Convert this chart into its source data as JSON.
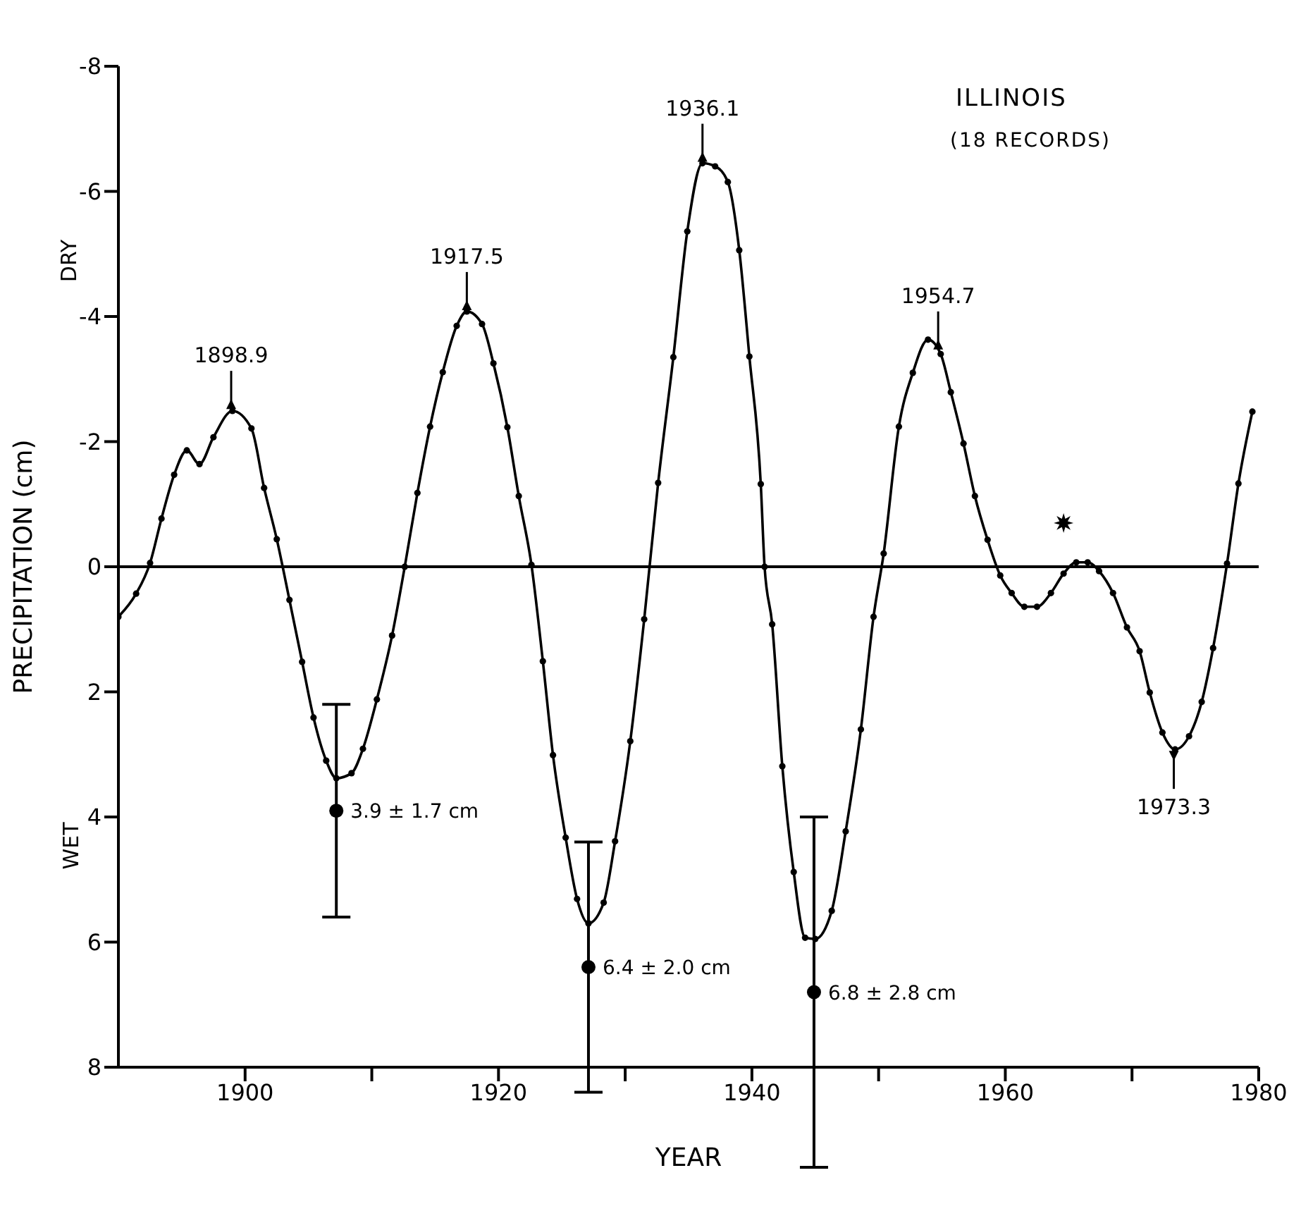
{
  "chart_data": {
    "type": "line",
    "title": "ILLINOIS",
    "subtitle": "(18 RECORDS)",
    "xlabel": "YEAR",
    "ylabel": "PRECIPITATION (cm)",
    "xlim": [
      1890,
      1980
    ],
    "xticks": [
      1900,
      {
        "value": 1910,
        "label": null
      },
      1920,
      {
        "value": 1930,
        "label": null
      },
      1940,
      {
        "value": 1950,
        "label": null
      },
      1960,
      {
        "value": 1970,
        "label": null
      },
      1980
    ],
    "ylim": [
      8,
      -8
    ],
    "yticks": [
      -8,
      -6,
      -4,
      -2,
      0,
      2,
      4,
      6,
      8
    ],
    "grid": false,
    "marker": "circle",
    "line_style": "solid",
    "series": [
      {
        "color": "#000000",
        "x": [
          1890.0,
          1891.4,
          1892.5,
          1893.4,
          1894.4,
          1895.4,
          1896.4,
          1897.5,
          1899.0,
          1900.5,
          1901.5,
          1902.5,
          1903.5,
          1904.5,
          1905.4,
          1906.4,
          1907.2,
          1908.4,
          1909.3,
          1910.4,
          1911.6,
          1912.6,
          1913.6,
          1914.6,
          1915.6,
          1916.7,
          1917.5,
          1918.7,
          1919.6,
          1920.7,
          1921.6,
          1922.6,
          1923.5,
          1924.3,
          1925.3,
          1926.2,
          1927.1,
          1928.3,
          1929.2,
          1930.4,
          1931.5,
          1932.6,
          1933.8,
          1934.9,
          1936.1,
          1937.1,
          1938.1,
          1939.0,
          1939.8,
          1940.7,
          1941.0,
          1941.6,
          1942.4,
          1943.3,
          1944.2,
          1945.0,
          1946.3,
          1947.4,
          1948.6,
          1949.6,
          1950.4,
          1951.6,
          1952.7,
          1953.9,
          1954.9,
          1955.7,
          1956.7,
          1957.6,
          1958.6,
          1959.6,
          1960.5,
          1961.5,
          1962.5,
          1963.6,
          1964.6,
          1965.6,
          1966.5,
          1967.4,
          1968.5,
          1969.6,
          1970.6,
          1971.4,
          1972.4,
          1973.4,
          1974.5,
          1975.5,
          1976.4,
          1977.5,
          1978.4,
          1979.5
        ],
        "values": [
          0.8,
          0.43,
          -0.06,
          -0.77,
          -1.47,
          -1.86,
          -1.64,
          -2.07,
          -2.49,
          -2.21,
          -1.26,
          -0.44,
          0.53,
          1.52,
          2.41,
          3.1,
          3.38,
          3.3,
          2.91,
          2.12,
          1.1,
          0,
          -1.18,
          -2.24,
          -3.11,
          -3.85,
          -4.08,
          -3.88,
          -3.25,
          -2.23,
          -1.13,
          -0.03,
          1.51,
          3.01,
          4.33,
          5.31,
          5.7,
          5.37,
          4.39,
          2.79,
          0.84,
          -1.34,
          -3.35,
          -5.36,
          -6.45,
          -6.4,
          -6.15,
          -5.06,
          -3.36,
          -1.32,
          0,
          0.92,
          3.19,
          4.88,
          5.93,
          5.95,
          5.5,
          4.23,
          2.6,
          0.8,
          -0.21,
          -2.24,
          -3.1,
          -3.63,
          -3.4,
          -2.79,
          -1.97,
          -1.13,
          -0.43,
          0.14,
          0.42,
          0.64,
          0.64,
          0.42,
          0.11,
          -0.07,
          -0.07,
          0.07,
          0.42,
          0.97,
          1.35,
          2.01,
          2.65,
          2.92,
          2.71,
          2.16,
          1.3,
          -0.05,
          -1.33,
          -2.48
        ]
      },
      {
        "type": "scatter",
        "color": "#000000",
        "x": [
          1907.2,
          1927.1,
          1944.9
        ],
        "values": [
          3.9,
          6.4,
          6.8
        ],
        "errors": [
          1.7,
          2.0,
          2.8
        ],
        "value_labels": [
          "3.9 ± 1.7 cm",
          "6.4 ± 2.0 cm",
          "6.8 ± 2.8 cm"
        ]
      },
      {
        "type": "scatter",
        "color": "#000000",
        "marker": "star",
        "x": [
          1964.6
        ],
        "values": [
          -0.7
        ]
      }
    ],
    "ref_lines": [
      {
        "axis": "y",
        "value": 0
      }
    ],
    "annotations": [
      "DRY",
      "WET",
      {
        "text": "1898.9",
        "x": 1898.9,
        "y": -2.5
      },
      {
        "text": "1917.5",
        "x": 1917.5,
        "y": -4.08
      },
      {
        "text": "1936.1",
        "x": 1936.1,
        "y": -6.45
      },
      {
        "text": "1954.7",
        "x": 1954.7,
        "y": -3.45
      },
      {
        "text": "1973.3",
        "x": 1973.3,
        "y": 2.92
      }
    ]
  }
}
